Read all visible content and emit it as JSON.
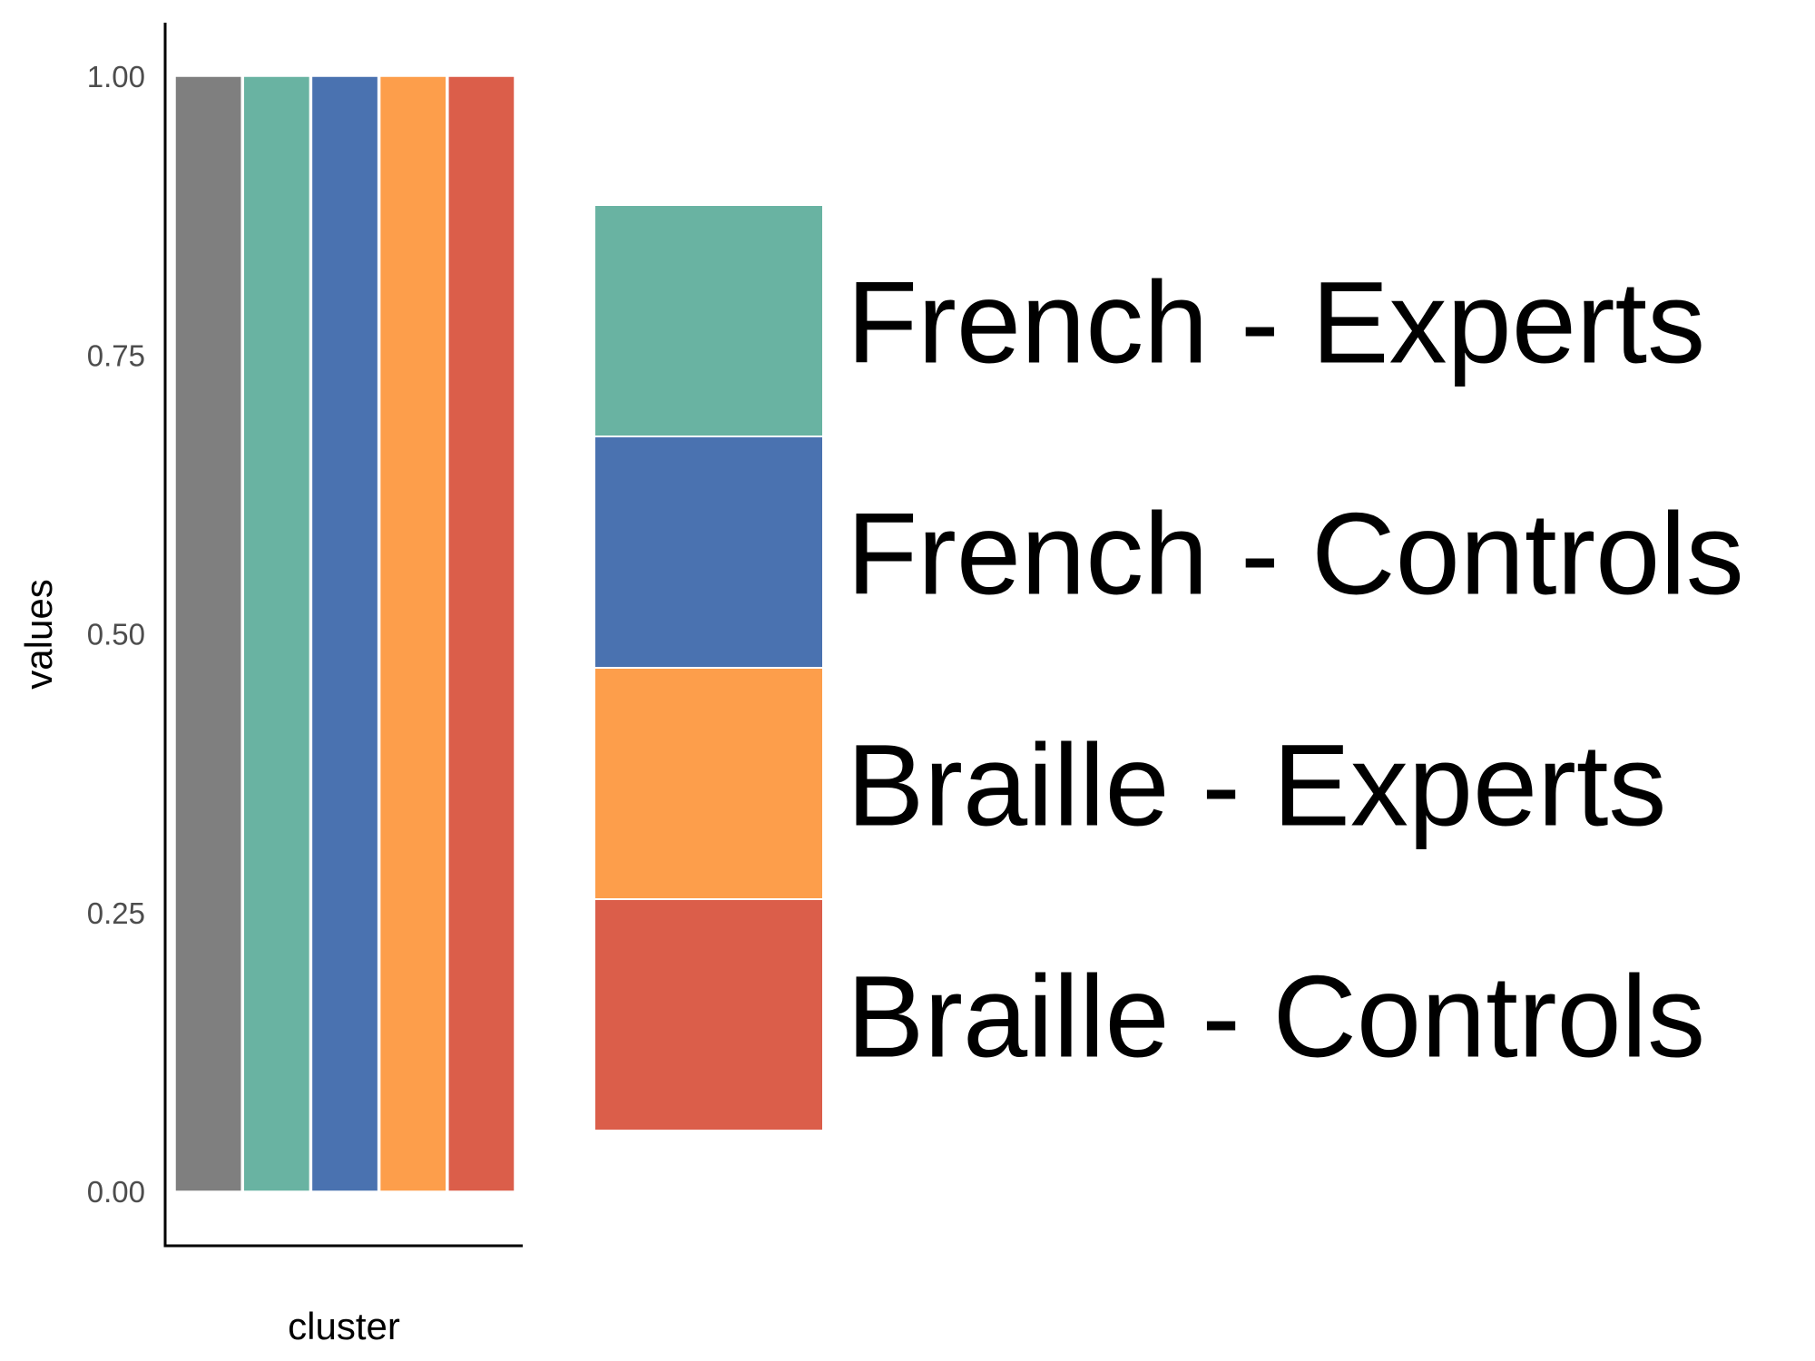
{
  "chart_data": {
    "type": "bar",
    "xlabel": "cluster",
    "ylabel": "values",
    "ylim": [
      0,
      1
    ],
    "yticks": [
      {
        "value": 0,
        "label": "0.00"
      },
      {
        "value": 0.25,
        "label": "0.25"
      },
      {
        "value": 0.5,
        "label": "0.50"
      },
      {
        "value": 0.75,
        "label": "0.75"
      },
      {
        "value": 1,
        "label": "1.00"
      }
    ],
    "bars": [
      {
        "value": 1,
        "color": "#7f7f7f"
      },
      {
        "value": 1,
        "color": "#69b3a2"
      },
      {
        "value": 1,
        "color": "#4a72b0"
      },
      {
        "value": 1,
        "color": "#fd9e4b"
      },
      {
        "value": 1,
        "color": "#db5e4a"
      }
    ],
    "legend": {
      "position": "right",
      "entries": [
        {
          "label": "French - Experts",
          "color": "#69b3a2"
        },
        {
          "label": "French - Controls",
          "color": "#4a72b0"
        },
        {
          "label": "Braille - Experts",
          "color": "#fd9e4b"
        },
        {
          "label": "Braille - Controls",
          "color": "#db5e4a"
        }
      ]
    },
    "grid": false
  }
}
